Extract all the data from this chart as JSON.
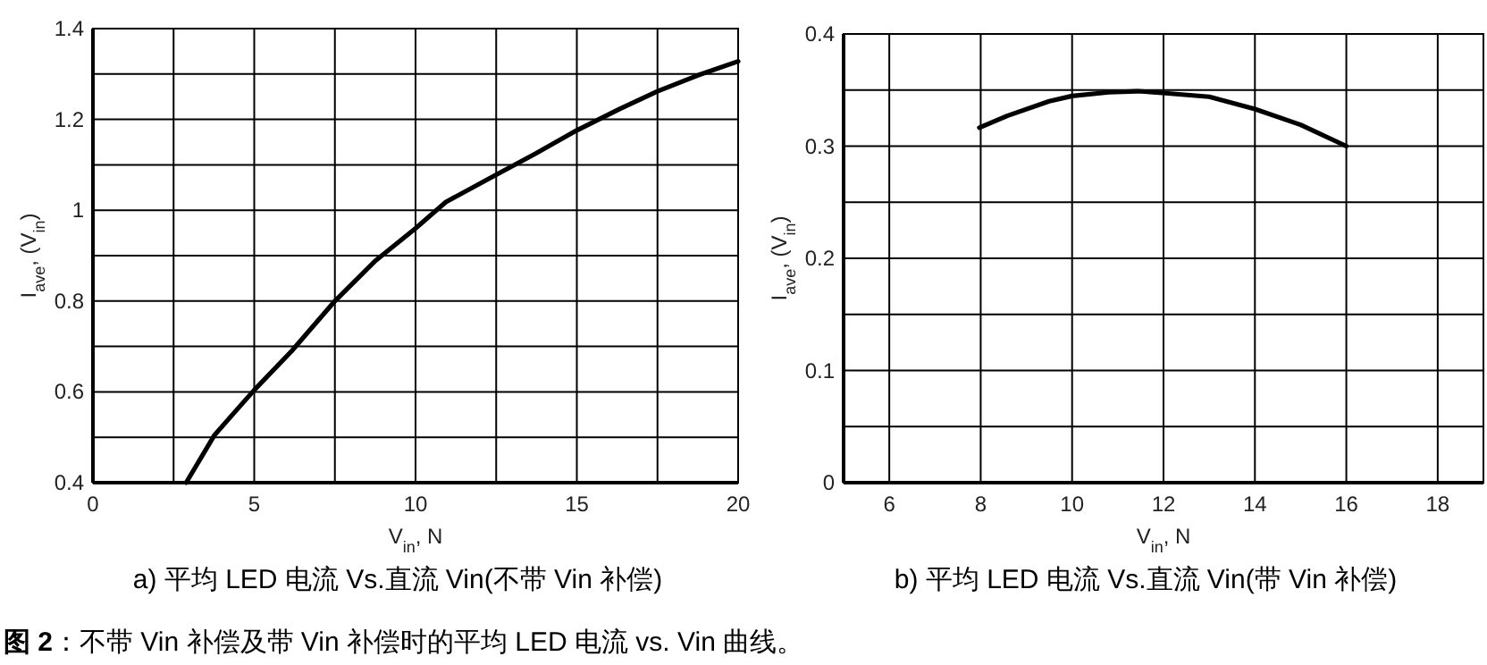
{
  "chart_data": [
    {
      "type": "line",
      "title": "a) 平均 LED 电流 Vs.直流 Vin(不带 Vin 补偿)",
      "xlabel": "V$_{in}$, N",
      "ylabel": "I$_{ave}$, (V$_{in}$)",
      "xlim": [
        0,
        20
      ],
      "xticks": [
        0,
        {
          "value": 2.5,
          "label": null
        },
        5,
        {
          "value": 7.5,
          "label": null
        },
        10,
        {
          "value": 12.5,
          "label": null
        },
        15,
        {
          "value": 17.5,
          "label": null
        },
        20
      ],
      "ylim": [
        0.4,
        1.4
      ],
      "yticks": [
        0.4,
        {
          "value": 0.5,
          "label": null
        },
        0.6,
        {
          "value": 0.7,
          "label": null
        },
        0.8,
        {
          "value": 0.9,
          "label": null
        },
        1,
        {
          "value": 1.1,
          "label": null
        },
        1.2,
        {
          "value": 1.3,
          "label": null
        },
        1.4
      ],
      "grid": true,
      "color": "#000000",
      "x": [
        2.89,
        3.77,
        5,
        6.16,
        7.5,
        8.73,
        10,
        10.94,
        12.5,
        13.7,
        15,
        16.3,
        17.5,
        18.75,
        20
      ],
      "values": [
        0.4,
        0.505,
        0.604,
        0.69,
        0.8,
        0.887,
        0.96,
        1.018,
        1.078,
        1.124,
        1.176,
        1.222,
        1.262,
        1.297,
        1.328
      ],
      "annotations": [
        "**图 2**：不带 Vin 补偿及带 Vin 补偿时的平均 LED 电流 vs. Vin 曲线。"
      ]
    },
    {
      "type": "line",
      "title": "b) 平均 LED 电流 Vs.直流 Vin(带 Vin 补偿)",
      "xlabel": "V$_{in}$, N",
      "ylabel": "I$_{ave}$, (V$_{in}$)",
      "xlim": [
        5,
        19
      ],
      "xticks": [
        6,
        8,
        10,
        12,
        14,
        16,
        18
      ],
      "ylim": [
        0,
        0.4
      ],
      "yticks": [
        0,
        {
          "value": 0.05,
          "label": null
        },
        0.1,
        {
          "value": 0.15,
          "label": null
        },
        0.2,
        {
          "value": 0.25,
          "label": null
        },
        0.3,
        {
          "value": 0.35,
          "label": null
        },
        0.4
      ],
      "grid": true,
      "color": "#000000",
      "x": [
        7.97,
        8.58,
        9.5,
        10,
        10.8,
        11.45,
        12.1,
        13,
        14,
        15,
        16
      ],
      "values": [
        0.3165,
        0.327,
        0.34,
        0.3447,
        0.348,
        0.349,
        0.347,
        0.344,
        0.333,
        0.319,
        0.3
      ]
    }
  ]
}
